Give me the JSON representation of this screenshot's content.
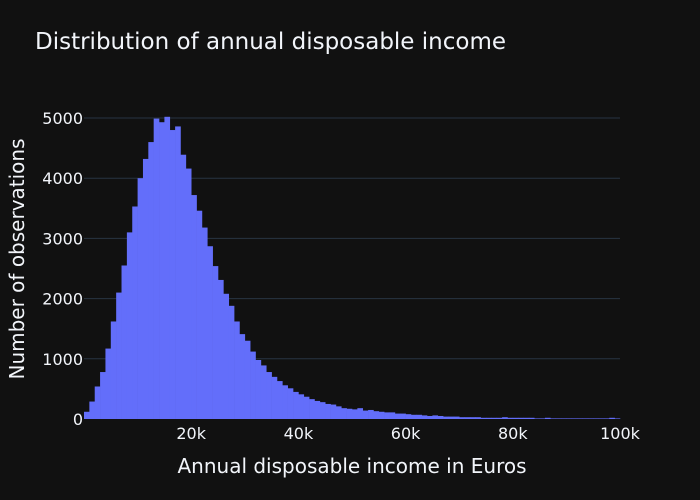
{
  "chart_data": {
    "type": "bar",
    "title": "Distribution of annual disposable income",
    "xlabel": "Annual disposable income in Euros",
    "ylabel": "Number of observations",
    "xlim": [
      0,
      100000
    ],
    "ylim": [
      0,
      5000
    ],
    "bin_width": 1000,
    "x_ticks": [
      20000,
      40000,
      60000,
      80000,
      100000
    ],
    "x_tick_labels": [
      "20k",
      "40k",
      "60k",
      "80k",
      "100k"
    ],
    "y_ticks": [
      0,
      1000,
      2000,
      3000,
      4000,
      5000
    ],
    "y_tick_labels": [
      "0",
      "1000",
      "2000",
      "3000",
      "4000",
      "5000"
    ],
    "grid": true,
    "bar_color": "#636efa",
    "background": "#111111",
    "grid_color": "#283442",
    "bin_starts": [
      0,
      1000,
      2000,
      3000,
      4000,
      5000,
      6000,
      7000,
      8000,
      9000,
      10000,
      11000,
      12000,
      13000,
      14000,
      15000,
      16000,
      17000,
      18000,
      19000,
      20000,
      21000,
      22000,
      23000,
      24000,
      25000,
      26000,
      27000,
      28000,
      29000,
      30000,
      31000,
      32000,
      33000,
      34000,
      35000,
      36000,
      37000,
      38000,
      39000,
      40000,
      41000,
      42000,
      43000,
      44000,
      45000,
      46000,
      47000,
      48000,
      49000,
      50000,
      51000,
      52000,
      53000,
      54000,
      55000,
      56000,
      57000,
      58000,
      59000,
      60000,
      61000,
      62000,
      63000,
      64000,
      65000,
      66000,
      67000,
      68000,
      69000,
      70000,
      71000,
      72000,
      73000,
      74000,
      75000,
      76000,
      77000,
      78000,
      79000,
      80000,
      81000,
      82000,
      83000,
      84000,
      85000,
      86000,
      87000,
      88000,
      89000,
      90000,
      91000,
      92000,
      93000,
      94000,
      95000,
      96000,
      97000,
      98000,
      99000
    ],
    "values": [
      120,
      290,
      540,
      780,
      1170,
      1620,
      2100,
      2550,
      3100,
      3530,
      4000,
      4320,
      4600,
      4990,
      4930,
      5020,
      4800,
      4860,
      4390,
      4160,
      3720,
      3460,
      3180,
      2870,
      2540,
      2310,
      2080,
      1880,
      1620,
      1410,
      1300,
      1120,
      980,
      890,
      780,
      700,
      630,
      560,
      510,
      450,
      410,
      370,
      330,
      300,
      280,
      250,
      240,
      210,
      180,
      170,
      160,
      180,
      140,
      150,
      130,
      120,
      110,
      110,
      90,
      90,
      80,
      70,
      70,
      60,
      50,
      60,
      50,
      40,
      40,
      40,
      30,
      30,
      30,
      30,
      20,
      20,
      20,
      20,
      30,
      20,
      20,
      20,
      20,
      20,
      10,
      10,
      20,
      10,
      10,
      10,
      10,
      10,
      10,
      10,
      10,
      10,
      10,
      10,
      20,
      10
    ]
  }
}
